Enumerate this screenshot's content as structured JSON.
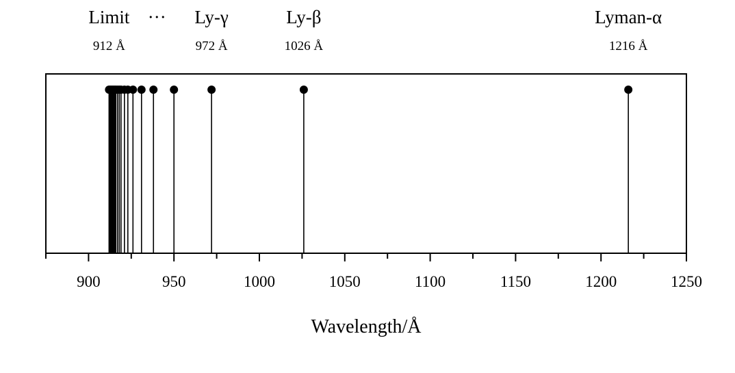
{
  "chart_data": {
    "type": "scatter",
    "style": "stem",
    "title": "",
    "xlabel": "Wavelength/Å",
    "ylabel": "",
    "xlim": [
      875,
      1250
    ],
    "xticks": [
      900,
      950,
      1000,
      1050,
      1100,
      1150,
      1200,
      1250
    ],
    "xtick_labels": [
      "900",
      "950",
      "1000",
      "1050",
      "1100",
      "1150",
      "1200",
      "1250"
    ],
    "grid": false,
    "series": [
      {
        "x": [
          1216,
          1026,
          972,
          950,
          938,
          931,
          926,
          923,
          921,
          919,
          918,
          917,
          916,
          915.5,
          915,
          914.5,
          914,
          913.5,
          913,
          912.5,
          912
        ],
        "marker": "circle",
        "color": "#000000"
      }
    ],
    "annotations": [
      {
        "name": "Limit",
        "wavelength_label": "912 Å",
        "x": 912
      },
      {
        "name": "···",
        "wavelength_label": "",
        "x": 940
      },
      {
        "name": "Ly-γ",
        "wavelength_label": "972 Å",
        "x": 972
      },
      {
        "name": "Ly-β",
        "wavelength_label": "1026 Å",
        "x": 1026
      },
      {
        "name": "Lyman-α",
        "wavelength_label": "1216 Å",
        "x": 1216
      }
    ]
  }
}
